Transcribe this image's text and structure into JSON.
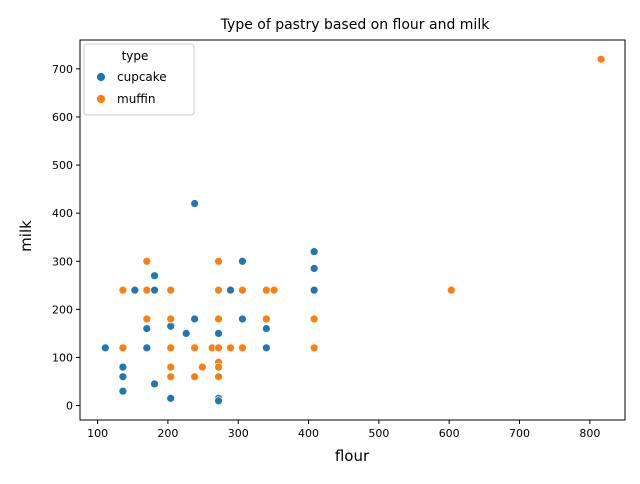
{
  "chart_data": {
    "type": "scatter",
    "title": "Type of pastry based on flour and milk",
    "xlabel": "flour",
    "ylabel": "milk",
    "xlim": [
      75,
      850
    ],
    "ylim": [
      -30,
      760
    ],
    "xticks": [
      100,
      200,
      300,
      400,
      500,
      600,
      700,
      800
    ],
    "yticks": [
      0,
      100,
      200,
      300,
      400,
      500,
      600,
      700
    ],
    "grid": false,
    "legend": {
      "title": "type",
      "placement": "top-left"
    },
    "series": [
      {
        "name": "cupcake",
        "color": "#1f77b4",
        "points": [
          [
            111,
            120
          ],
          [
            136,
            80
          ],
          [
            136,
            60
          ],
          [
            136,
            30
          ],
          [
            153,
            240
          ],
          [
            170,
            160
          ],
          [
            170,
            120
          ],
          [
            181,
            270
          ],
          [
            181,
            240
          ],
          [
            181,
            45
          ],
          [
            204,
            165
          ],
          [
            204,
            15
          ],
          [
            226,
            150
          ],
          [
            238,
            420
          ],
          [
            238,
            180
          ],
          [
            272,
            150
          ],
          [
            272,
            120
          ],
          [
            272,
            15
          ],
          [
            272,
            10
          ],
          [
            289,
            240
          ],
          [
            306,
            300
          ],
          [
            306,
            180
          ],
          [
            340,
            160
          ],
          [
            340,
            120
          ],
          [
            408,
            320
          ],
          [
            408,
            285
          ],
          [
            408,
            240
          ]
        ]
      },
      {
        "name": "muffin",
        "color": "#ff7f0e",
        "points": [
          [
            136,
            240
          ],
          [
            136,
            120
          ],
          [
            170,
            300
          ],
          [
            170,
            240
          ],
          [
            170,
            180
          ],
          [
            204,
            240
          ],
          [
            204,
            180
          ],
          [
            204,
            120
          ],
          [
            204,
            80
          ],
          [
            204,
            60
          ],
          [
            238,
            120
          ],
          [
            238,
            60
          ],
          [
            249,
            80
          ],
          [
            263,
            120
          ],
          [
            272,
            300
          ],
          [
            272,
            240
          ],
          [
            272,
            180
          ],
          [
            272,
            120
          ],
          [
            272,
            90
          ],
          [
            272,
            80
          ],
          [
            272,
            60
          ],
          [
            289,
            120
          ],
          [
            306,
            240
          ],
          [
            306,
            120
          ],
          [
            340,
            240
          ],
          [
            340,
            180
          ],
          [
            351,
            240
          ],
          [
            408,
            180
          ],
          [
            408,
            120
          ],
          [
            603,
            240
          ],
          [
            816,
            720
          ]
        ]
      }
    ]
  }
}
